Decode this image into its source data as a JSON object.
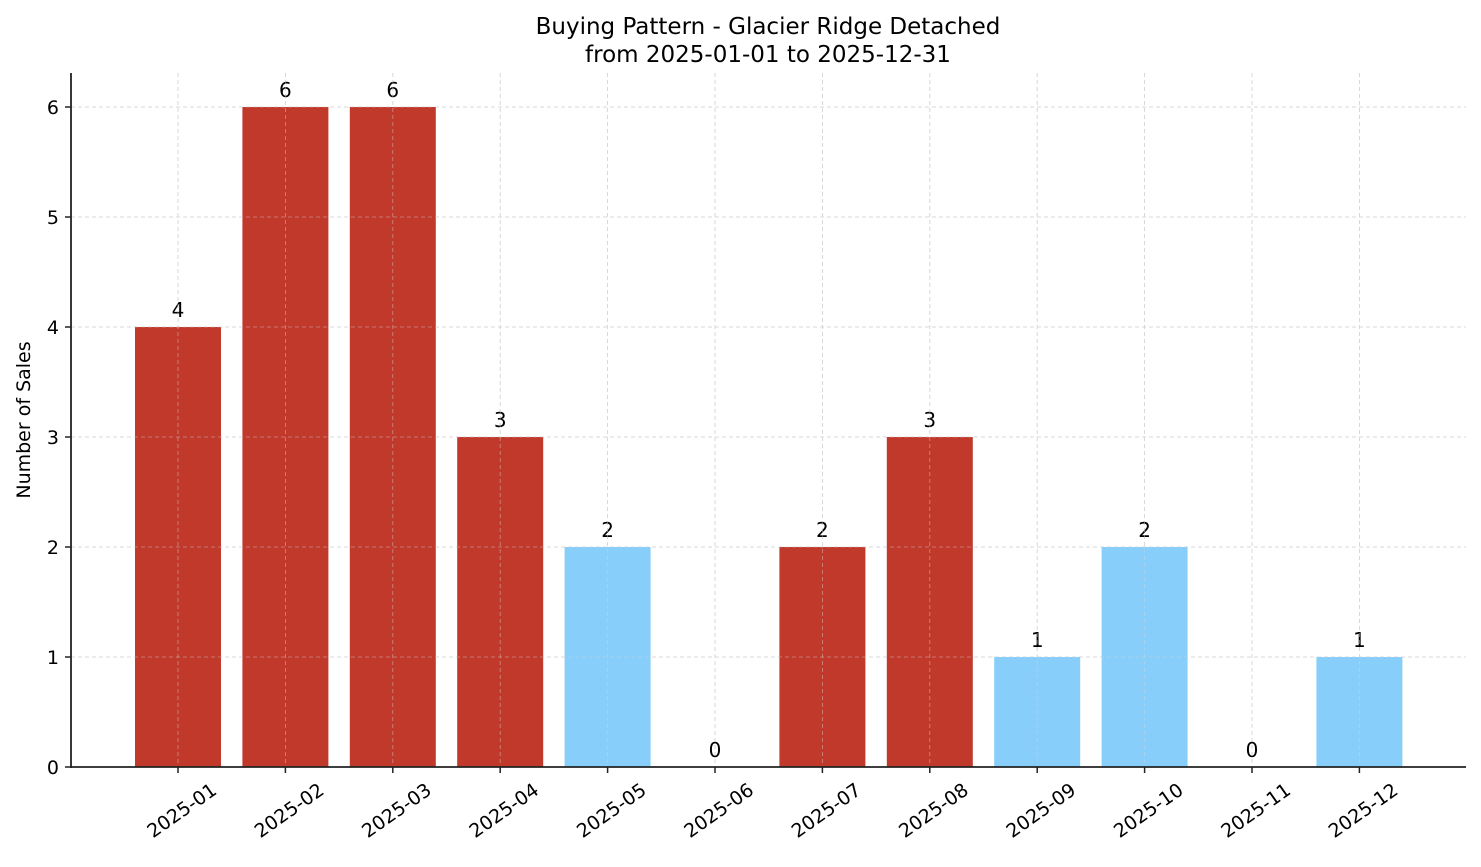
{
  "chart_data": {
    "type": "bar",
    "title": "Buying Pattern - Glacier Ridge Detached",
    "subtitle": "from 2025-01-01 to 2025-12-31",
    "xlabel": "",
    "ylabel": "Number of Sales",
    "categories": [
      "2025-01",
      "2025-02",
      "2025-03",
      "2025-04",
      "2025-05",
      "2025-06",
      "2025-07",
      "2025-08",
      "2025-09",
      "2025-10",
      "2025-11",
      "2025-12"
    ],
    "values": [
      4,
      6,
      6,
      3,
      2,
      0,
      2,
      3,
      1,
      2,
      0,
      1
    ],
    "bar_colors": [
      "#c0392b",
      "#c0392b",
      "#c0392b",
      "#c0392b",
      "#87cefa",
      "#87cefa",
      "#c0392b",
      "#c0392b",
      "#87cefa",
      "#87cefa",
      "#87cefa",
      "#87cefa"
    ],
    "ylim": [
      0,
      6.3
    ],
    "yticks": [
      0,
      1,
      2,
      3,
      4,
      5,
      6
    ],
    "grid": true,
    "legend": null,
    "data_labels": true
  },
  "colors": {
    "high": "#c0392b",
    "low": "#87cefa",
    "grid": "#d3d3d3",
    "axis": "#222222"
  }
}
